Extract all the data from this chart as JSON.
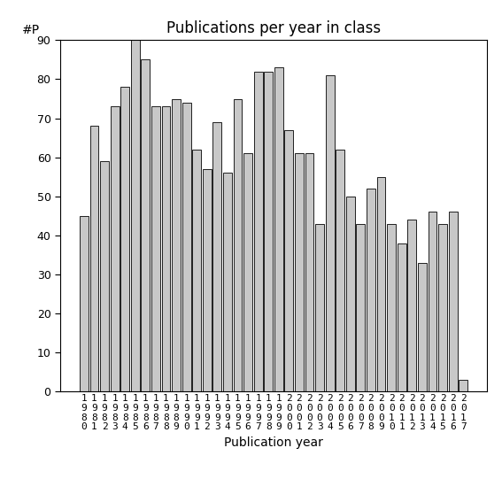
{
  "title": "Publications per year in class",
  "xlabel": "Publication year",
  "ylabel": "#P",
  "years": [
    1980,
    1981,
    1982,
    1983,
    1984,
    1985,
    1986,
    1987,
    1988,
    1989,
    1990,
    1991,
    1992,
    1993,
    1994,
    1995,
    1996,
    1997,
    1998,
    1999,
    2000,
    2001,
    2002,
    2003,
    2004,
    2005,
    2006,
    2007,
    2008,
    2009,
    2010,
    2011,
    2012,
    2013,
    2014,
    2015,
    2016,
    2017
  ],
  "values": [
    45,
    68,
    59,
    73,
    78,
    90,
    85,
    73,
    73,
    75,
    74,
    62,
    57,
    69,
    56,
    75,
    61,
    82,
    82,
    83,
    67,
    61,
    61,
    43,
    81,
    62,
    50,
    43,
    52,
    55,
    43,
    38,
    44,
    33,
    46,
    43,
    46,
    3
  ],
  "bar_color": "#c8c8c8",
  "bar_edgecolor": "#000000",
  "ylim": [
    0,
    90
  ],
  "yticks": [
    0,
    10,
    20,
    30,
    40,
    50,
    60,
    70,
    80,
    90
  ],
  "background_color": "#ffffff",
  "title_fontsize": 12,
  "axis_fontsize": 10,
  "tick_fontsize": 9
}
